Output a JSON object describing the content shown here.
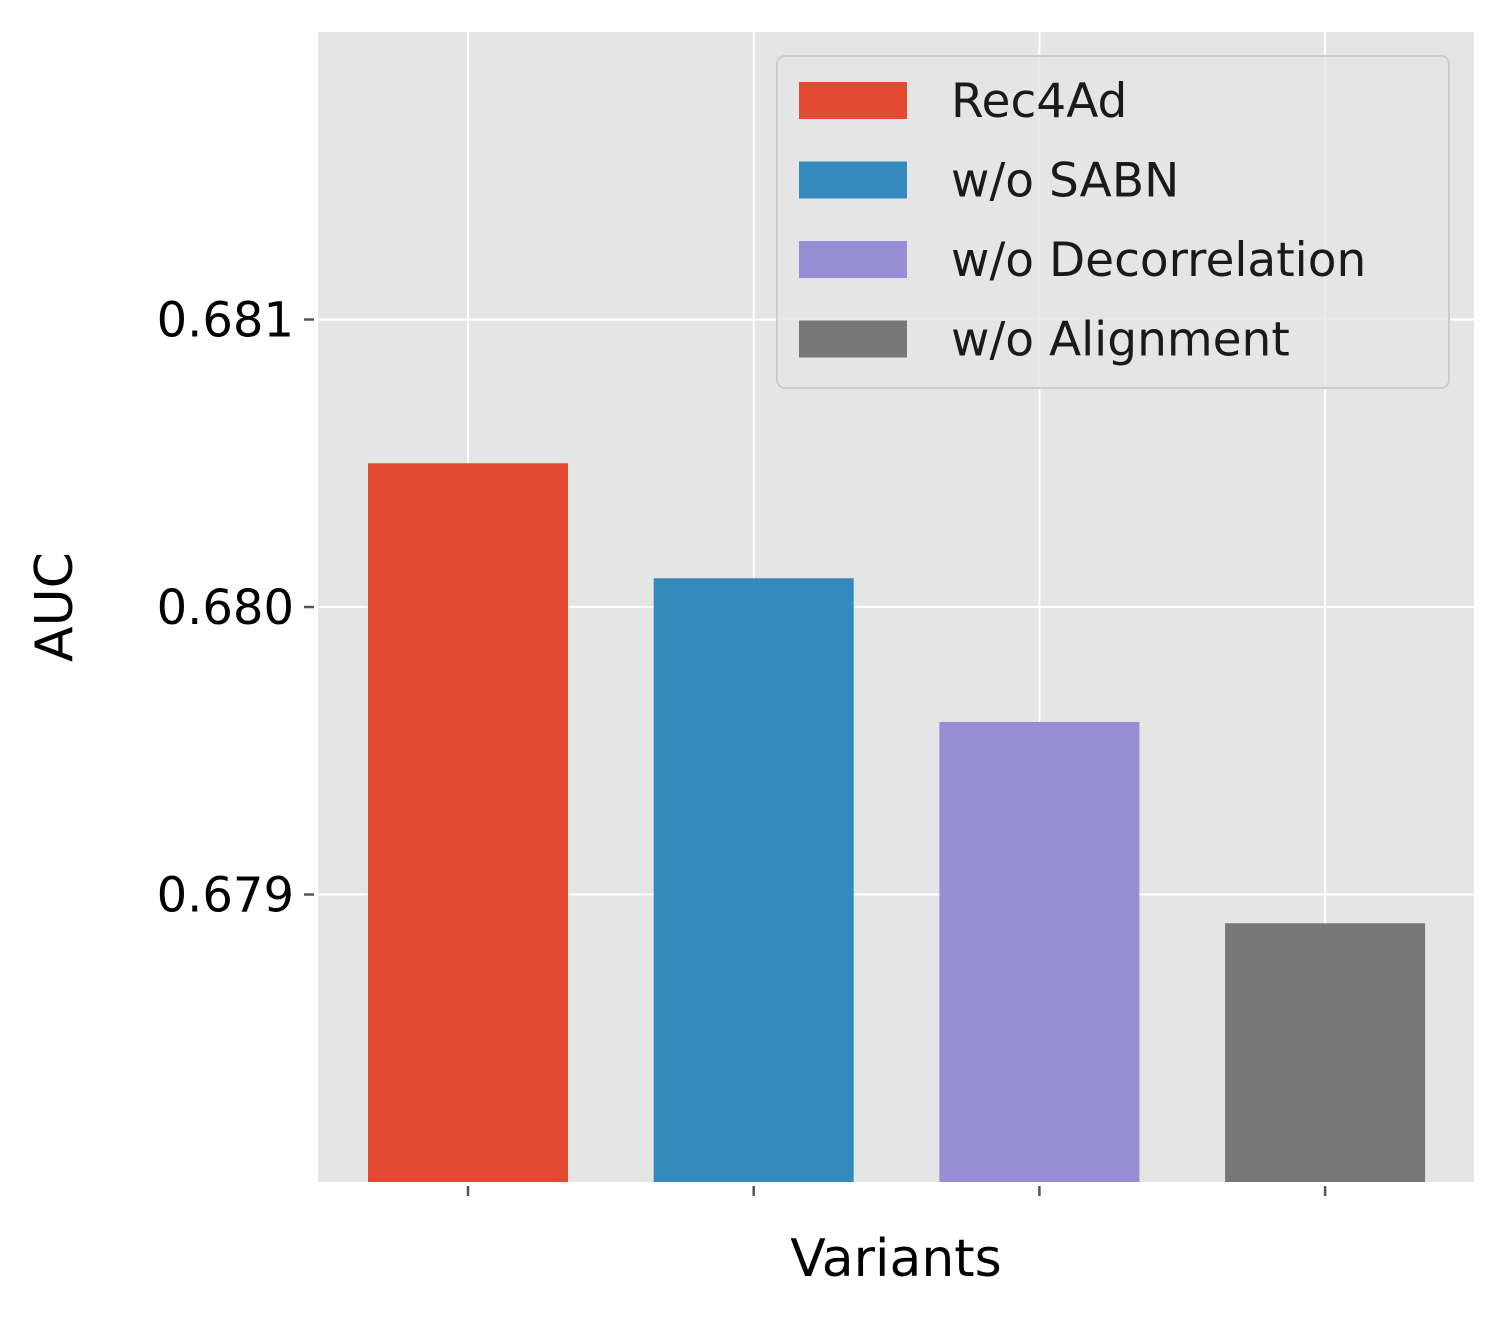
{
  "chart_data": {
    "type": "bar",
    "categories": [
      "Rec4Ad",
      "w/o SABN",
      "w/o Decorrelation",
      "w/o Alignment"
    ],
    "values": [
      0.6805,
      0.6801,
      0.6796,
      0.6789
    ],
    "colors": [
      "#E24A33",
      "#348ABD",
      "#988ED5",
      "#777777"
    ],
    "xlabel": "Variants",
    "ylabel": "AUC",
    "ylim": [
      0.678,
      0.682
    ],
    "yticks": [
      {
        "value": 0.679,
        "label": "0.679"
      },
      {
        "value": 0.68,
        "label": "0.680"
      },
      {
        "value": 0.681,
        "label": "0.681"
      }
    ],
    "grid": true,
    "legend": {
      "position": "top-right",
      "entries": [
        "Rec4Ad",
        "w/o SABN",
        "w/o Decorrelation",
        "w/o Alignment"
      ]
    },
    "style": {
      "plot_background": "#E5E5E5",
      "grid_color": "#FFFFFF",
      "tick_color": "#555555"
    }
  }
}
